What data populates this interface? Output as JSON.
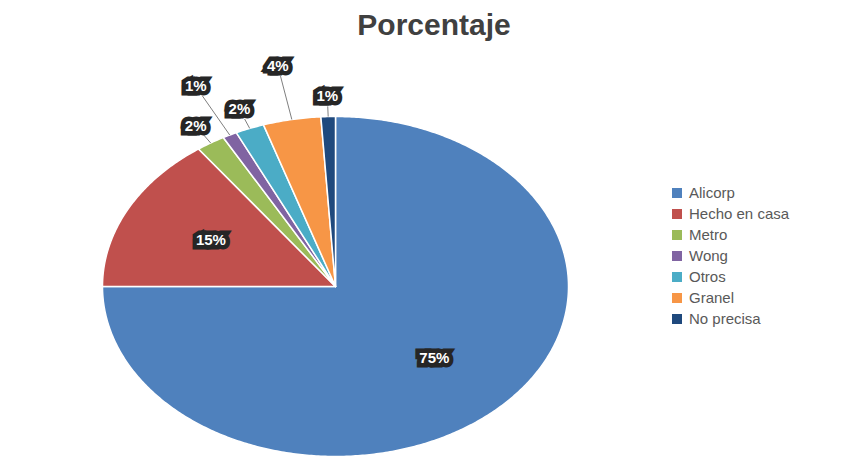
{
  "chart_data": {
    "type": "pie",
    "title": "Porcentaje",
    "categories": [
      "Alicorp",
      "Hecho en casa",
      "Metro",
      "Wong",
      "Otros",
      "Granel",
      "No precisa"
    ],
    "values": [
      75,
      15,
      2,
      1,
      2,
      4,
      1
    ],
    "value_labels": [
      "75%",
      "15%",
      "2%",
      "1%",
      "2%",
      "4%",
      "1%"
    ],
    "colors": [
      "#4f81bd",
      "#c0504d",
      "#9bbb59",
      "#8064a2",
      "#4bacc6",
      "#f79646",
      "#1f497d"
    ],
    "data_labels": true,
    "legend": "right"
  }
}
